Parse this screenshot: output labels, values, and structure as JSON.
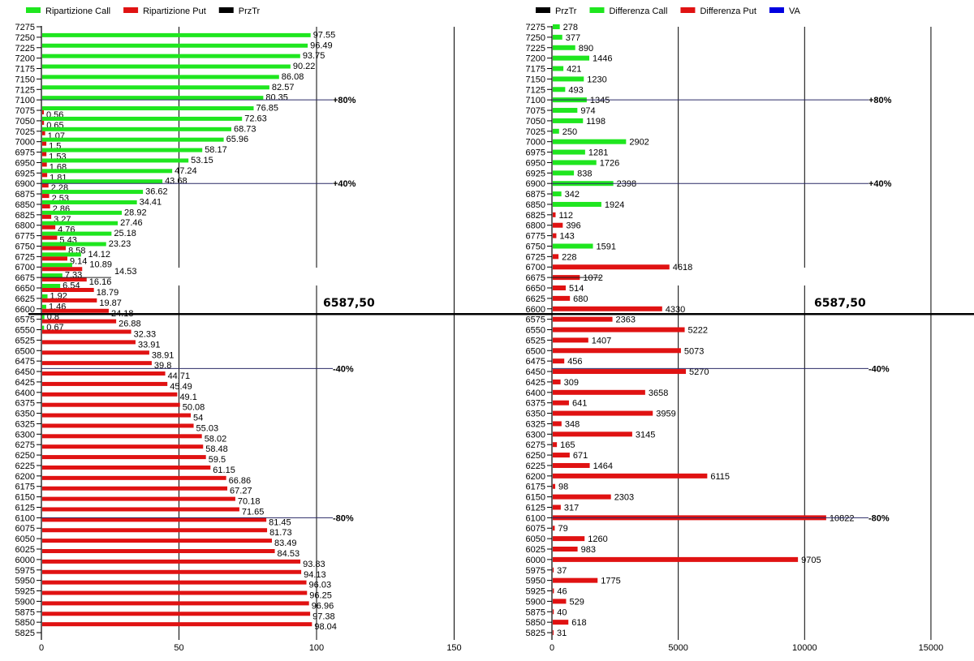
{
  "colors": {
    "call": "#1fe61f",
    "put": "#e01212",
    "prztr": "#000000",
    "va": "#0000e0",
    "reference_line": "#2a2a66",
    "grid": "#000000"
  },
  "chart_data": [
    {
      "type": "bar",
      "orientation": "horizontal",
      "legend": [
        {
          "label": "Ripartizione Call",
          "color": "#1fe61f"
        },
        {
          "label": "Ripartizione Put",
          "color": "#e01212"
        },
        {
          "label": "PrzTr",
          "color": "#000000"
        }
      ],
      "legend_position": "top-left",
      "xlim": [
        0,
        150
      ],
      "xticks": [
        "0",
        "50",
        "100",
        "150"
      ],
      "strikes": [
        7275,
        7250,
        7225,
        7200,
        7175,
        7150,
        7125,
        7100,
        7075,
        7050,
        7025,
        7000,
        6975,
        6950,
        6925,
        6900,
        6875,
        6850,
        6825,
        6800,
        6775,
        6750,
        6725,
        6700,
        6675,
        6650,
        6625,
        6600,
        6575,
        6550,
        6525,
        6500,
        6475,
        6450,
        6425,
        6400,
        6375,
        6350,
        6325,
        6300,
        6275,
        6250,
        6225,
        6200,
        6175,
        6150,
        6125,
        6100,
        6075,
        6050,
        6025,
        6000,
        5975,
        5950,
        5925,
        5900,
        5875,
        5850,
        5825
      ],
      "series": [
        {
          "name": "Ripartizione Call",
          "values": [
            null,
            97.55,
            96.49,
            93.75,
            90.22,
            86.08,
            82.57,
            80.35,
            76.85,
            72.63,
            68.73,
            65.96,
            58.17,
            53.15,
            47.24,
            43.68,
            36.62,
            34.41,
            28.92,
            27.46,
            25.18,
            23.23,
            14.12,
            10.89,
            7.33,
            6.54,
            1.92,
            1.46,
            0.8,
            0.67,
            null,
            null,
            null,
            null,
            null,
            null,
            null,
            null,
            null,
            null,
            null,
            null,
            null,
            null,
            null,
            null,
            null,
            null,
            null,
            null,
            null,
            null,
            null,
            null,
            null,
            null,
            null,
            null,
            null
          ]
        },
        {
          "name": "Ripartizione Put",
          "values": [
            null,
            null,
            null,
            null,
            null,
            null,
            null,
            null,
            0.56,
            0.65,
            1.07,
            1.5,
            1.53,
            1.68,
            1.81,
            2.28,
            2.53,
            2.86,
            3.27,
            4.76,
            5.43,
            8.58,
            9.14,
            14.53,
            16.16,
            18.79,
            19.87,
            24.18,
            26.88,
            32.33,
            33.91,
            38.91,
            39.8,
            44.71,
            45.49,
            49.1,
            50.08,
            54,
            55.03,
            58.02,
            58.48,
            59.5,
            61.15,
            66.86,
            67.27,
            70.18,
            71.65,
            81.45,
            81.73,
            83.49,
            84.53,
            93.83,
            94.13,
            96.03,
            96.25,
            96.96,
            97.38,
            98.04,
            null
          ]
        }
      ],
      "reference_lines": [
        {
          "label": "+80%",
          "strike": 7100
        },
        {
          "label": "+40%",
          "strike": 6900
        },
        {
          "label": "-40%",
          "strike": 6457
        },
        {
          "label": "-80%",
          "strike": 6100
        }
      ],
      "va_strike": 6675,
      "prztr": {
        "value": 6587.5,
        "label": "6587,50"
      },
      "grid": true
    },
    {
      "type": "bar",
      "orientation": "horizontal",
      "legend": [
        {
          "label": "PrzTr",
          "color": "#000000"
        },
        {
          "label": "Differenza Call",
          "color": "#1fe61f"
        },
        {
          "label": "Differenza Put",
          "color": "#e01212"
        },
        {
          "label": "VA",
          "color": "#0000e0"
        }
      ],
      "legend_position": "top-left",
      "xlim": [
        0,
        15000
      ],
      "xticks": [
        "0",
        "5000",
        "10000",
        "15000"
      ],
      "strikes": [
        7275,
        7250,
        7225,
        7200,
        7175,
        7150,
        7125,
        7100,
        7075,
        7050,
        7025,
        7000,
        6975,
        6950,
        6925,
        6900,
        6875,
        6850,
        6825,
        6800,
        6775,
        6750,
        6725,
        6700,
        6675,
        6650,
        6625,
        6600,
        6575,
        6550,
        6525,
        6500,
        6475,
        6450,
        6425,
        6400,
        6375,
        6350,
        6325,
        6300,
        6275,
        6250,
        6225,
        6200,
        6175,
        6150,
        6125,
        6100,
        6075,
        6050,
        6025,
        6000,
        5975,
        5950,
        5925,
        5900,
        5875,
        5850,
        5825
      ],
      "values": [
        278,
        377,
        890,
        1446,
        421,
        1230,
        493,
        1345,
        974,
        1198,
        250,
        2902,
        1281,
        1726,
        838,
        2398,
        342,
        1924,
        112,
        396,
        143,
        1591,
        228,
        4618,
        1072,
        514,
        680,
        4330,
        2363,
        5222,
        1407,
        5073,
        456,
        5270,
        309,
        3658,
        641,
        3959,
        348,
        3145,
        165,
        671,
        1464,
        6115,
        98,
        2303,
        317,
        10822,
        79,
        1260,
        983,
        9705,
        37,
        1775,
        46,
        529,
        40,
        618,
        31
      ],
      "series_of_value": [
        "call",
        "call",
        "call",
        "call",
        "call",
        "call",
        "call",
        "call",
        "call",
        "call",
        "call",
        "call",
        "call",
        "call",
        "call",
        "call",
        "call",
        "call",
        "put",
        "put",
        "put",
        "call",
        "put",
        "put",
        "put",
        "put",
        "put",
        "put",
        "put",
        "put",
        "put",
        "put",
        "put",
        "put",
        "put",
        "put",
        "put",
        "put",
        "put",
        "put",
        "put",
        "put",
        "put",
        "put",
        "put",
        "put",
        "put",
        "put",
        "put",
        "put",
        "put",
        "put",
        "put",
        "put",
        "put",
        "put",
        "put",
        "put",
        "put"
      ],
      "reference_lines": [
        {
          "label": "+80%",
          "strike": 7100
        },
        {
          "label": "+40%",
          "strike": 6900
        },
        {
          "label": "-40%",
          "strike": 6457
        },
        {
          "label": "-80%",
          "strike": 6100
        }
      ],
      "va_strike": 6675,
      "prztr": {
        "value": 6587.5,
        "label": "6587,50"
      },
      "grid": true
    }
  ]
}
